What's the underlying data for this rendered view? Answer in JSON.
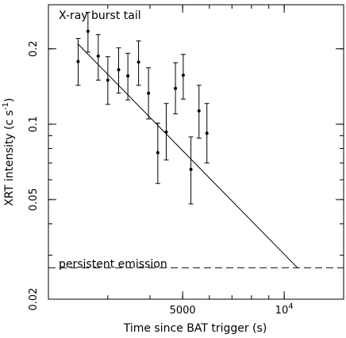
{
  "chart_data": {
    "type": "scatter",
    "xlabel": "Time since BAT trigger (s)",
    "ylabel": "XRT intensity (c s",
    "ylabel_superscript": "-1",
    "ylabel_close": ")",
    "x_scale": "log",
    "y_scale": "log",
    "xlim": [
      2000,
      15000
    ],
    "ylim": [
      0.02,
      0.3
    ],
    "x_ticks": [
      {
        "value": 5000,
        "label": "5000",
        "sup": ""
      },
      {
        "value": 10000,
        "label": "10",
        "sup": "4"
      }
    ],
    "y_ticks": [
      {
        "value": 0.02,
        "label": "0.02"
      },
      {
        "value": 0.05,
        "label": "0.05"
      },
      {
        "value": 0.1,
        "label": "0.1"
      },
      {
        "value": 0.2,
        "label": "0.2"
      }
    ],
    "series": [
      {
        "name": "X-ray burst tail",
        "points": [
          {
            "x": 2450,
            "y": 0.178,
            "ylo": 0.143,
            "yhi": 0.22
          },
          {
            "x": 2620,
            "y": 0.235,
            "ylo": 0.194,
            "yhi": 0.28
          },
          {
            "x": 2810,
            "y": 0.187,
            "ylo": 0.15,
            "yhi": 0.228
          },
          {
            "x": 3000,
            "y": 0.15,
            "ylo": 0.12,
            "yhi": 0.186
          },
          {
            "x": 3230,
            "y": 0.165,
            "ylo": 0.133,
            "yhi": 0.202
          },
          {
            "x": 3440,
            "y": 0.156,
            "ylo": 0.125,
            "yhi": 0.192
          },
          {
            "x": 3700,
            "y": 0.177,
            "ylo": 0.143,
            "yhi": 0.215
          },
          {
            "x": 3960,
            "y": 0.133,
            "ylo": 0.105,
            "yhi": 0.168
          },
          {
            "x": 4220,
            "y": 0.077,
            "ylo": 0.058,
            "yhi": 0.101
          },
          {
            "x": 4470,
            "y": 0.093,
            "ylo": 0.072,
            "yhi": 0.121
          },
          {
            "x": 4760,
            "y": 0.139,
            "ylo": 0.11,
            "yhi": 0.176
          },
          {
            "x": 5020,
            "y": 0.157,
            "ylo": 0.126,
            "yhi": 0.19
          },
          {
            "x": 5290,
            "y": 0.066,
            "ylo": 0.048,
            "yhi": 0.089
          },
          {
            "x": 5590,
            "y": 0.113,
            "ylo": 0.088,
            "yhi": 0.143
          },
          {
            "x": 5900,
            "y": 0.092,
            "ylo": 0.07,
            "yhi": 0.121
          }
        ]
      }
    ],
    "model_line": {
      "x": [
        2440,
        10950
      ],
      "y": [
        0.21,
        0.0267
      ]
    },
    "persistent_level": 0.0267,
    "annotations": {
      "burst_label": "X-ray burst tail",
      "persistent_label": "persistent emission"
    }
  }
}
